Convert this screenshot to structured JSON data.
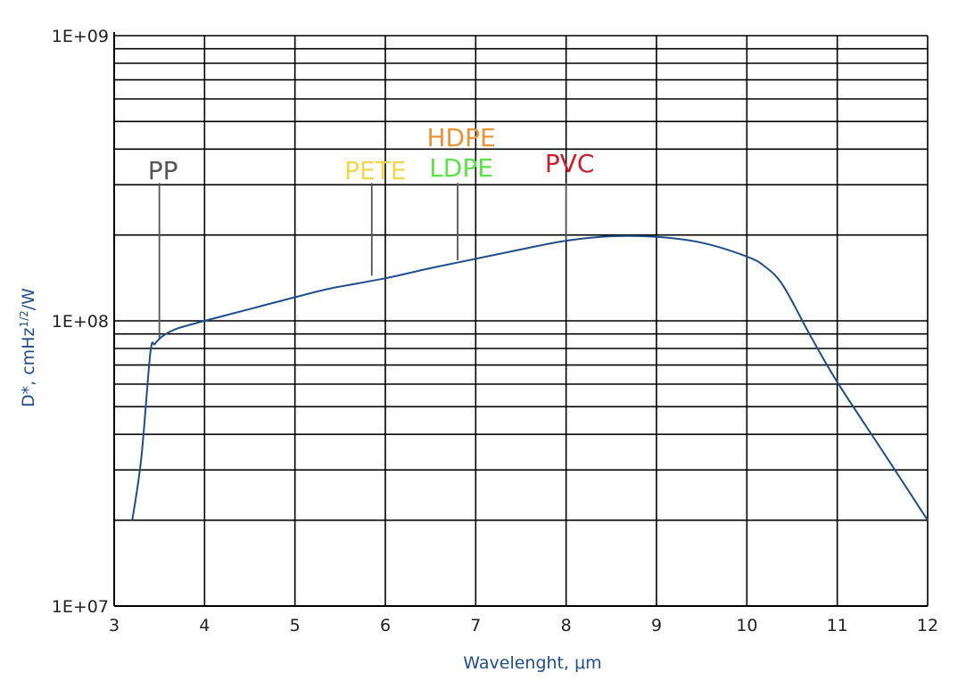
{
  "chart_data": {
    "type": "line",
    "xlabel": "Wavelenght, μm",
    "ylabel": "D*, cmHz",
    "ylabel_sup": "1/2",
    "ylabel_tail": "/W",
    "xlim": [
      3,
      12
    ],
    "ylim": [
      10000000,
      1000000000
    ],
    "yscale": "log",
    "grid": true,
    "x_ticks": [
      3,
      4,
      5,
      6,
      7,
      8,
      9,
      10,
      11,
      12
    ],
    "x_tick_labels": [
      "3",
      "4",
      "5",
      "6",
      "7",
      "8",
      "9",
      "10",
      "11",
      "12"
    ],
    "y_ticks": [
      10000000,
      100000000,
      1000000000
    ],
    "y_tick_labels": [
      "1E+07",
      "1E+08",
      "1E+09"
    ],
    "series": [
      {
        "color": "#1f4e89",
        "x": [
          3.2,
          3.3,
          3.4,
          3.45,
          3.55,
          3.7,
          4.0,
          4.5,
          5.0,
          5.4,
          6.0,
          6.5,
          7.0,
          7.5,
          8.0,
          8.5,
          9.0,
          9.5,
          10.0,
          10.2,
          10.4,
          10.7,
          11.0,
          11.5,
          12.0
        ],
        "y": [
          20000000,
          33000000,
          77000000,
          83000000,
          89000000,
          94000000,
          100000000,
          110000000,
          121000000,
          130000000,
          141000000,
          153000000,
          165000000,
          178000000,
          191000000,
          198000000,
          197000000,
          188000000,
          168000000,
          155000000,
          133000000,
          89000000,
          61000000,
          35000000,
          20000000
        ]
      }
    ],
    "annotations": [
      {
        "text": "PP",
        "x": 3.5,
        "color": "#555555",
        "line_top": 300000000,
        "line_bottom": 86000000
      },
      {
        "text": "PETE",
        "x": 5.85,
        "color": "#f2d64b",
        "line_top": 300000000,
        "line_bottom": 144000000
      },
      {
        "text": "HDPE",
        "x": 6.8,
        "color": "#e8953a",
        "line_top": null,
        "line_bottom": null
      },
      {
        "text": "LDPE",
        "x": 6.8,
        "color": "#5de34a",
        "line_top": 300000000,
        "line_bottom": 163000000
      },
      {
        "text": "PVC",
        "x": 8.0,
        "color": "#c8202f",
        "line_top": 300000000,
        "line_bottom": 191000000
      }
    ],
    "colors": {
      "curve": "#1f4e89",
      "axis_label": "#1f4e89",
      "grid": "#000000",
      "marker_line": "#555555"
    }
  }
}
